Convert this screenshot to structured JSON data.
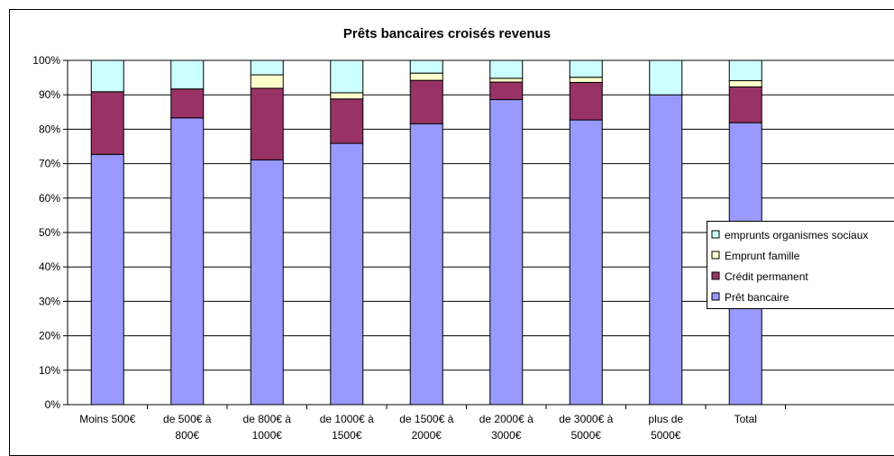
{
  "chart_data": {
    "type": "bar",
    "stacked": true,
    "title": "Prêts bancaires croisés revenus",
    "xlabel": "",
    "ylabel": "",
    "ylim": [
      0,
      100
    ],
    "y_ticks": [
      "0%",
      "10%",
      "20%",
      "30%",
      "40%",
      "50%",
      "60%",
      "70%",
      "80%",
      "90%",
      "100%"
    ],
    "grid": true,
    "legend_position": "right",
    "categories": [
      [
        "Moins 500€"
      ],
      [
        "de 500€ à",
        "800€"
      ],
      [
        "de 800€ à",
        "1000€"
      ],
      [
        "de 1000€ à",
        "1500€"
      ],
      [
        "de 1500€ à",
        "2000€"
      ],
      [
        "de 2000€ à",
        "3000€"
      ],
      [
        "de 3000€ à",
        "5000€"
      ],
      [
        "plus de",
        "5000€"
      ],
      [
        "Total"
      ]
    ],
    "series": [
      {
        "name": "Prêt bancaire",
        "color": "#9999ff",
        "values": [
          72.7,
          83.3,
          71.1,
          75.9,
          81.6,
          88.6,
          82.7,
          90.0,
          81.9
        ]
      },
      {
        "name": "Crédit permanent",
        "color": "#993366",
        "values": [
          18.2,
          8.4,
          20.8,
          12.9,
          12.6,
          5.1,
          10.9,
          0.0,
          10.4
        ]
      },
      {
        "name": "Emprunt famille",
        "color": "#ffffcc",
        "values": [
          0.0,
          0.0,
          3.9,
          1.8,
          2.1,
          1.1,
          1.5,
          0.0,
          1.8
        ]
      },
      {
        "name": "emprunts organismes sociaux",
        "color": "#ccffff",
        "values": [
          9.1,
          8.3,
          4.2,
          9.4,
          3.7,
          5.2,
          4.9,
          10.0,
          5.9
        ]
      }
    ],
    "legend": [
      "emprunts organismes sociaux",
      "Emprunt famille",
      "Crédit permanent",
      "Prêt bancaire"
    ]
  }
}
